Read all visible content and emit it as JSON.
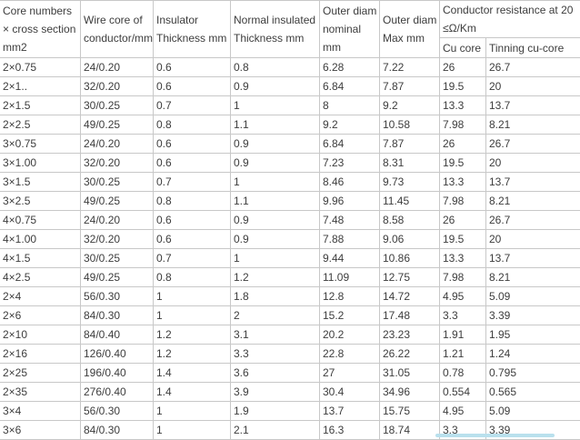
{
  "table": {
    "columns": [
      "Core numbers × cross section mm2",
      "Wire core of conductor/mm",
      "Insulator Thickness mm",
      "Normal insulated Thickness mm",
      "Outer diam nominal mm",
      "Outer diam Max mm"
    ],
    "resistance_group_label": "Conductor resistance at 20 ≤Ω/Km",
    "resistance_subcolumns": [
      "Cu core",
      "Tinning cu-core"
    ],
    "rows": [
      [
        "2×0.75",
        "24/0.20",
        "0.6",
        "0.8",
        "6.28",
        "7.22",
        "26",
        "26.7"
      ],
      [
        "2×1..",
        "32/0.20",
        "0.6",
        "0.9",
        "6.84",
        "7.87",
        "19.5",
        "20"
      ],
      [
        "2×1.5",
        "30/0.25",
        "0.7",
        "1",
        "8",
        "9.2",
        "13.3",
        "13.7"
      ],
      [
        "2×2.5",
        "49/0.25",
        "0.8",
        "1.1",
        "9.2",
        "10.58",
        "7.98",
        "8.21"
      ],
      [
        "3×0.75",
        "24/0.20",
        "0.6",
        "0.9",
        "6.84",
        "7.87",
        "26",
        "26.7"
      ],
      [
        "3×1.00",
        "32/0.20",
        "0.6",
        "0.9",
        "7.23",
        "8.31",
        "19.5",
        "20"
      ],
      [
        "3×1.5",
        "30/0.25",
        "0.7",
        "1",
        "8.46",
        "9.73",
        "13.3",
        "13.7"
      ],
      [
        "3×2.5",
        "49/0.25",
        "0.8",
        "1.1",
        "9.96",
        "11.45",
        "7.98",
        "8.21"
      ],
      [
        "4×0.75",
        "24/0.20",
        "0.6",
        "0.9",
        "7.48",
        "8.58",
        "26",
        "26.7"
      ],
      [
        "4×1.00",
        "32/0.20",
        "0.6",
        "0.9",
        "7.88",
        "9.06",
        "19.5",
        "20"
      ],
      [
        "4×1.5",
        "30/0.25",
        "0.7",
        "1",
        "9.44",
        "10.86",
        "13.3",
        "13.7"
      ],
      [
        "4×2.5",
        "49/0.25",
        "0.8",
        "1.2",
        "11.09",
        "12.75",
        "7.98",
        "8.21"
      ],
      [
        "2×4",
        "56/0.30",
        "1",
        "1.8",
        "12.8",
        "14.72",
        "4.95",
        "5.09"
      ],
      [
        "2×6",
        "84/0.30",
        "1",
        "2",
        "15.2",
        "17.48",
        "3.3",
        "3.39"
      ],
      [
        "2×10",
        "84/0.40",
        "1.2",
        "3.1",
        "20.2",
        "23.23",
        "1.91",
        "1.95"
      ],
      [
        "2×16",
        "126/0.40",
        "1.2",
        "3.3",
        "22.8",
        "26.22",
        "1.21",
        "1.24"
      ],
      [
        "2×25",
        "196/0.40",
        "1.4",
        "3.6",
        "27",
        "31.05",
        "0.78",
        "0.795"
      ],
      [
        "2×35",
        "276/0.40",
        "1.4",
        "3.9",
        "30.4",
        "34.96",
        "0.554",
        "0.565"
      ],
      [
        "3×4",
        "56/0.30",
        "1",
        "1.9",
        "13.7",
        "15.75",
        "4.95",
        "5.09"
      ],
      [
        "3×6",
        "84/0.30",
        "1",
        "2.1",
        "16.3",
        "18.74",
        "3.3",
        "3.39"
      ]
    ]
  },
  "colors": {
    "border": "#c8c8c8",
    "text": "#3d3d3d",
    "background": "#ffffff",
    "selection_bar": "#b9e0ed"
  }
}
